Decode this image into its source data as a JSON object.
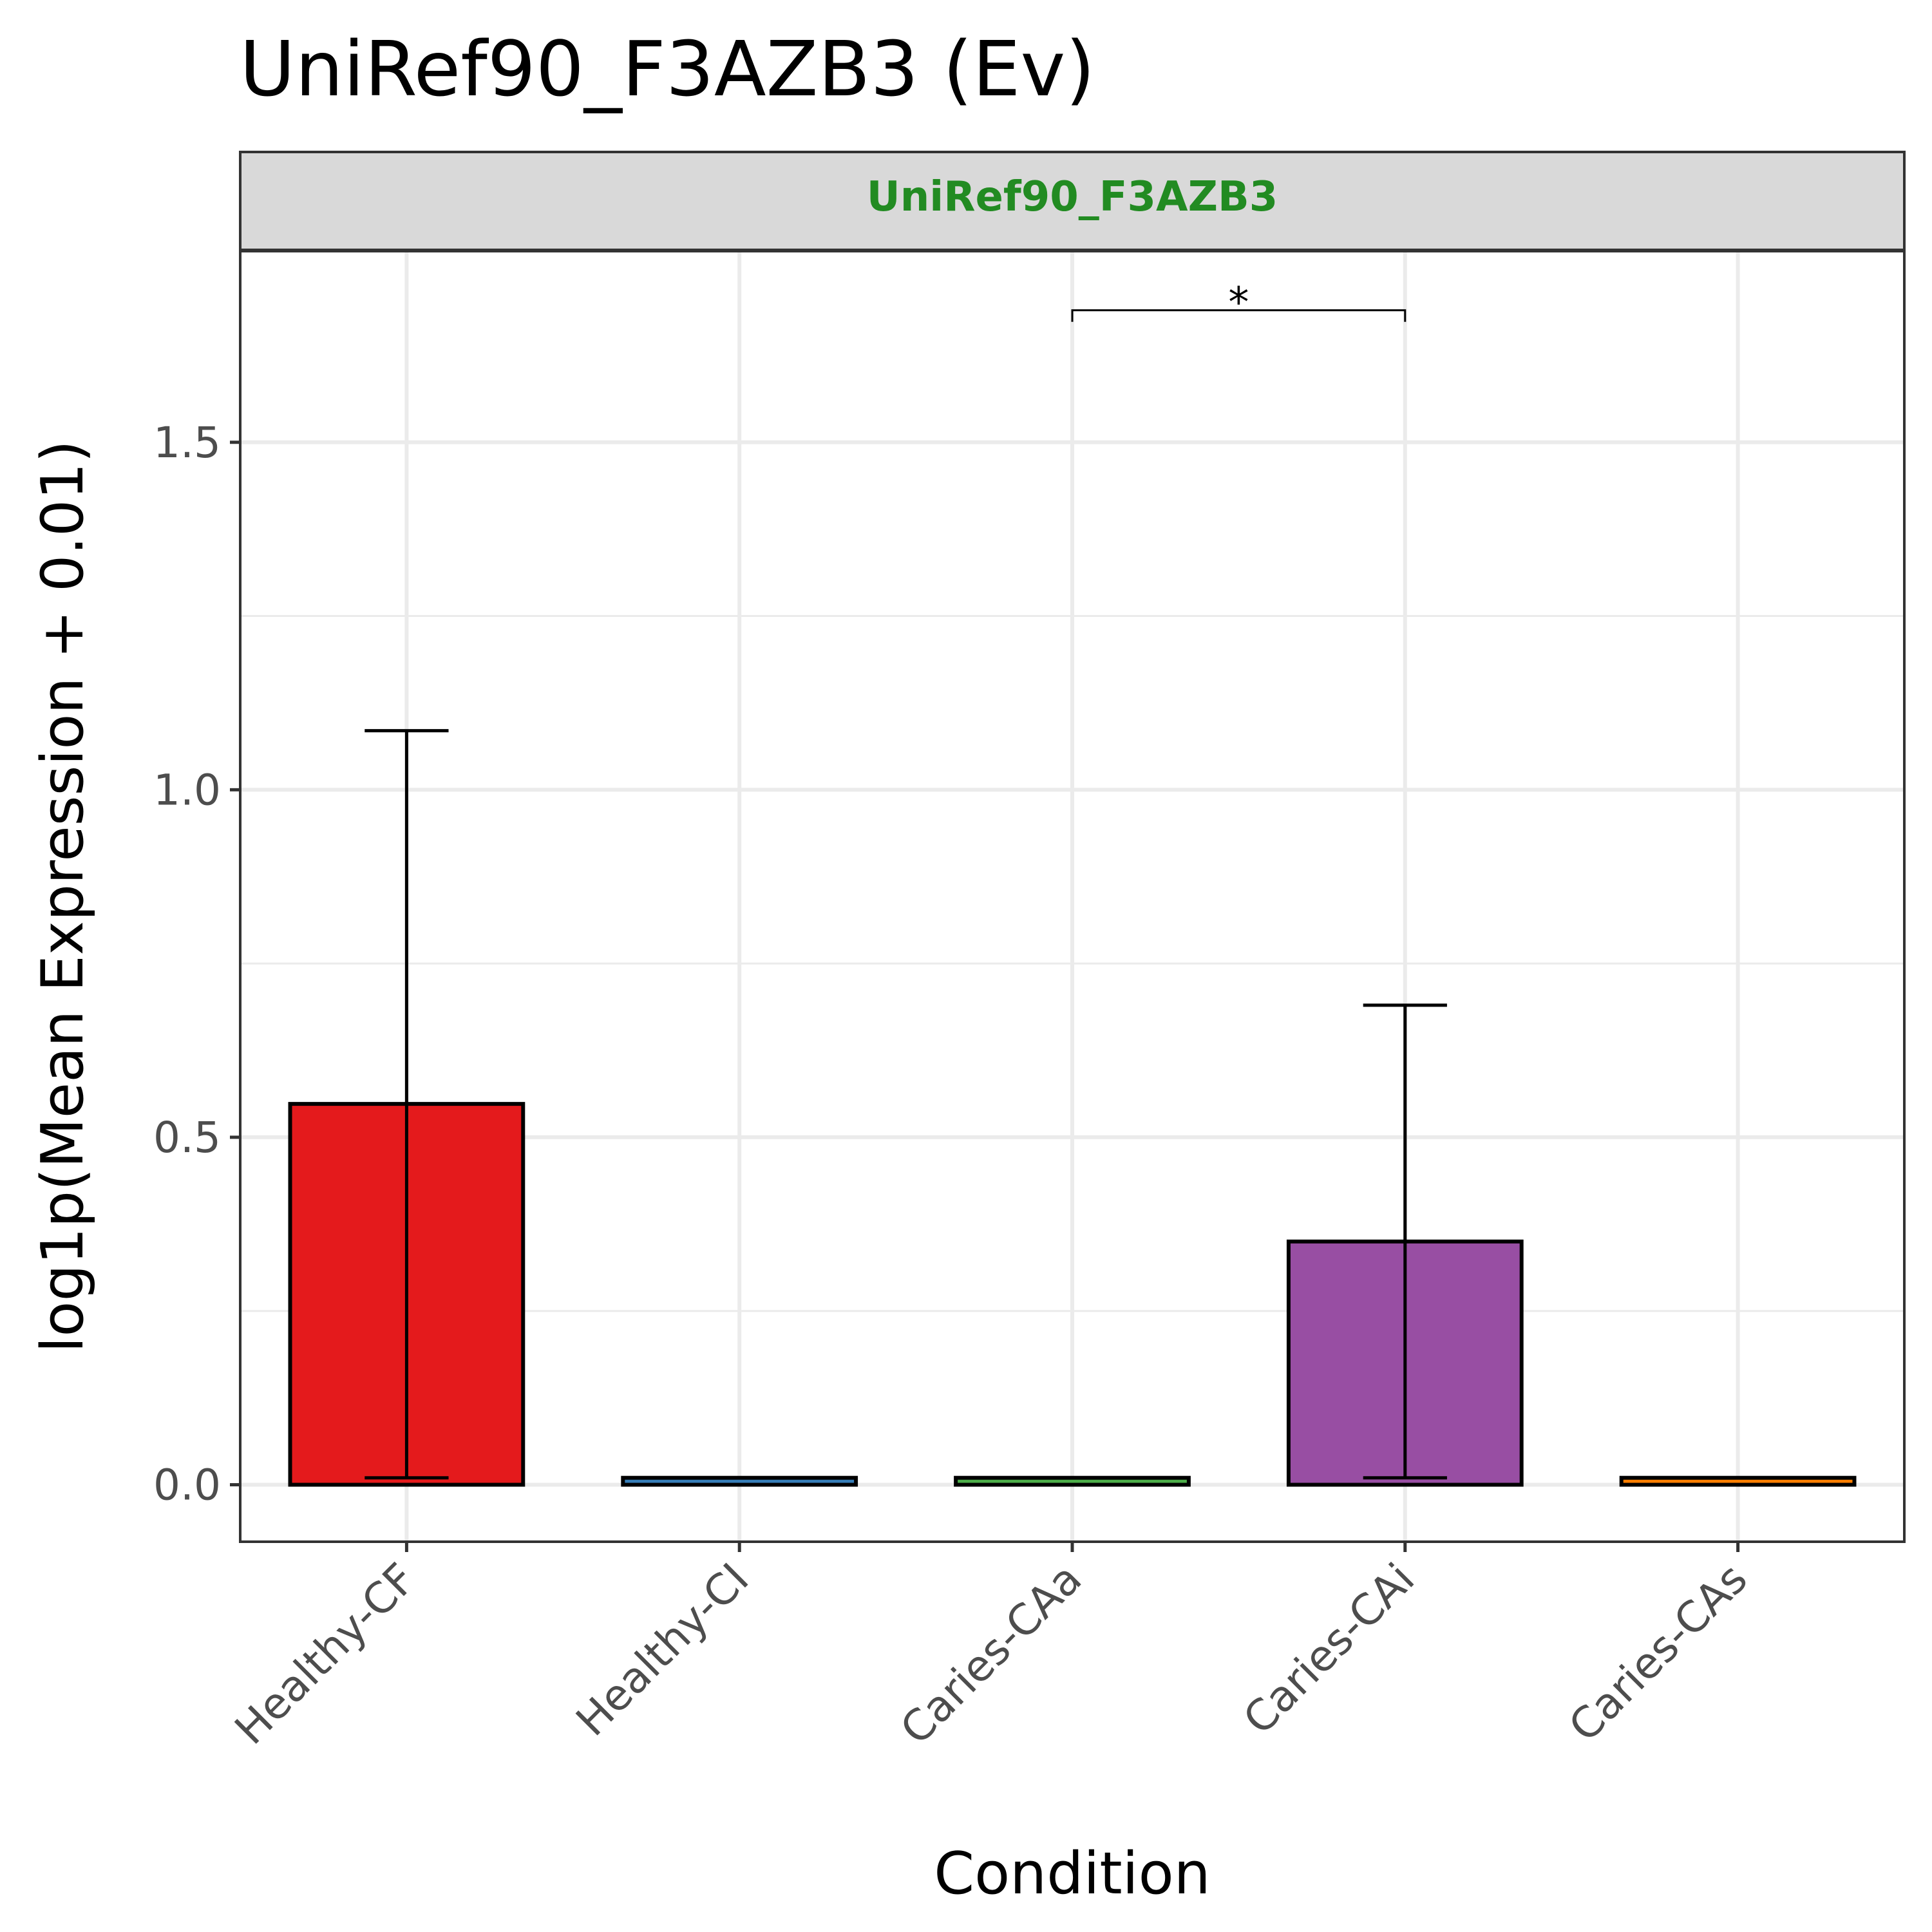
{
  "chart_data": {
    "type": "bar",
    "title": "UniRef90_F3AZB3 (Ev)",
    "facet_label": "UniRef90_F3AZB3",
    "xlabel": "Condition",
    "ylabel": "log1p(Mean Expression + 0.01)",
    "categories": [
      "Healthy-CF",
      "Healthy-CI",
      "Caries-CAa",
      "Caries-CAi",
      "Caries-CAs"
    ],
    "values": [
      0.548,
      0.01,
      0.01,
      0.35,
      0.01
    ],
    "error_low": [
      0.01,
      0.01,
      0.01,
      0.01,
      0.01
    ],
    "error_high": [
      1.085,
      0.01,
      0.01,
      0.69,
      0.01
    ],
    "colors": [
      "#E41A1C",
      "#377EB8",
      "#4DAF4A",
      "#984EA3",
      "#FF7F00"
    ],
    "ylim": [
      -0.082,
      1.775
    ],
    "yticks": [
      0.0,
      0.5,
      1.0,
      1.5
    ],
    "ytick_labels": [
      "0.0",
      "0.5",
      "1.0",
      "1.5"
    ],
    "grid": true,
    "strip_fill": "#D9D9D9",
    "strip_text_color": "#228B22",
    "significance": [
      {
        "from": "Caries-CAa",
        "to": "Caries-CAi",
        "y": 1.69,
        "label": "*"
      }
    ]
  }
}
